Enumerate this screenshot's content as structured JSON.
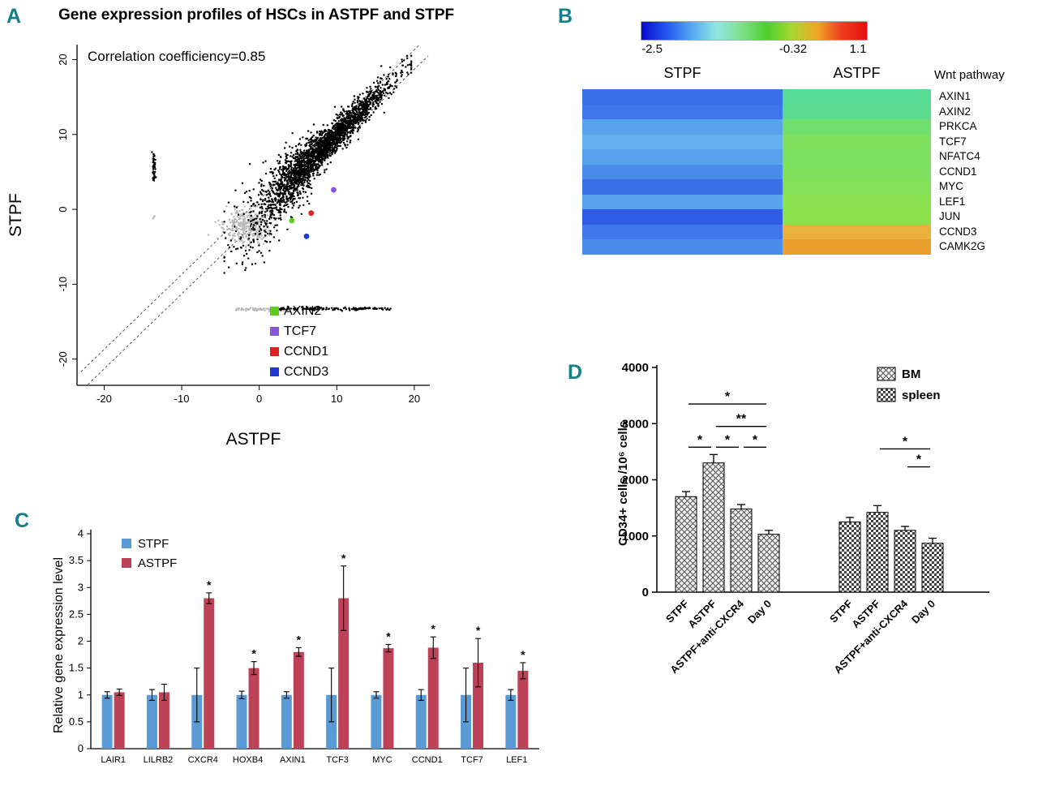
{
  "figure": {
    "accent_color": "#15808a",
    "background": "#ffffff"
  },
  "chart_data": [
    {
      "panel_label": "A",
      "type": "scatter",
      "title": "Gene expression profiles of HSCs in ASTPF and STPF",
      "annotation": "Correlation coefficiency=0.85",
      "xlabel": "ASTPF",
      "ylabel": "STPF",
      "xlim": [
        -20,
        20
      ],
      "ylim": [
        -20,
        20
      ],
      "xticks": [
        -20,
        -10,
        0,
        10,
        20
      ],
      "yticks": [
        -20,
        -10,
        0,
        10,
        20
      ],
      "correlation_coefficient": 0.85,
      "point_color": "#000000",
      "secondary_point_color": "#b9b9b9",
      "diagonal_guides_offset": 1.3,
      "cloud_summary": {
        "main_cloud": "dense black points along y=x from about (-4,-4) to (19,19), densest between 5 and 15",
        "gray_cluster": "light gray points clustered around (-2,-2) just below the origin",
        "gray_row": "gray points in a horizontal row near y=-13.3 for x in [-3,3]",
        "black_row": "black points in a horizontal row near y=-13.3 for x in [2,17]",
        "black_column": "black points in a vertical strip near x=-13.6 for y in [3.8,7.6]",
        "gray_outlier": "single gray point near (-13.6,-1)"
      },
      "legend": [
        {
          "label": "AXIN2",
          "color": "#5ecc1e",
          "x": 4.2,
          "y": -1.5
        },
        {
          "label": "TCF7",
          "color": "#8a55d6",
          "x": 9.6,
          "y": 2.6
        },
        {
          "label": "CCND1",
          "color": "#e0201f",
          "x": 6.7,
          "y": -0.5
        },
        {
          "label": "CCND3",
          "color": "#2038d0",
          "x": 6.1,
          "y": -3.6
        }
      ]
    },
    {
      "panel_label": "B",
      "type": "heatmap",
      "pathway_label": "Wnt pathway",
      "columns": [
        "STPF",
        "ASTPF"
      ],
      "colorbar": {
        "min_label": "-2.5",
        "mid_label": "-0.32",
        "max_label": "1.1",
        "gradient": [
          "#0a0ad2",
          "#2356ee",
          "#56a8f2",
          "#8ee8e2",
          "#7fe08a",
          "#4ecf2e",
          "#a8d832",
          "#f0a824",
          "#ee3c1c",
          "#e61010"
        ]
      },
      "rows": [
        {
          "gene": "AXIN1",
          "stpf": "#3a70e8",
          "astpf": "#57dc95"
        },
        {
          "gene": "AXIN2",
          "stpf": "#3f76e9",
          "astpf": "#5cdc8e"
        },
        {
          "gene": "PRKCA",
          "stpf": "#58a4ec",
          "astpf": "#70df6e"
        },
        {
          "gene": "TCF7",
          "stpf": "#62b0f0",
          "astpf": "#7ee05c"
        },
        {
          "gene": "NFATC4",
          "stpf": "#58a4ec",
          "astpf": "#7ce05e"
        },
        {
          "gene": "CCND1",
          "stpf": "#4a8cea",
          "astpf": "#7ee05c"
        },
        {
          "gene": "MYC",
          "stpf": "#3a70e8",
          "astpf": "#82e156"
        },
        {
          "gene": "LEF1",
          "stpf": "#58a4ec",
          "astpf": "#8ae24e"
        },
        {
          "gene": "JUN",
          "stpf": "#2e5ce4",
          "astpf": "#8ce24c"
        },
        {
          "gene": "CCND3",
          "stpf": "#3f76e9",
          "astpf": "#eab23c"
        },
        {
          "gene": "CAMK2G",
          "stpf": "#4a8cea",
          "astpf": "#ea9f2e"
        }
      ]
    },
    {
      "panel_label": "C",
      "type": "bar",
      "ylabel": "Relative gene expression level",
      "ylim": [
        0,
        4
      ],
      "yticks": [
        0,
        0.5,
        1,
        1.5,
        2,
        2.5,
        3,
        3.5,
        4
      ],
      "categories": [
        "LAIR1",
        "LILRB2",
        "CXCR4",
        "HOXB4",
        "AXIN1",
        "TCF3",
        "MYC",
        "CCND1",
        "TCF7",
        "LEF1"
      ],
      "series": [
        {
          "name": "STPF",
          "color": "#5b9bd5",
          "values": [
            1,
            1,
            1,
            1,
            1,
            1,
            1,
            1,
            1,
            1
          ],
          "errors": [
            0.06,
            0.1,
            0.5,
            0.07,
            0.06,
            0.5,
            0.06,
            0.1,
            0.5,
            0.1
          ]
        },
        {
          "name": "ASTPF",
          "color": "#bd4257",
          "values": [
            1.05,
            1.05,
            2.8,
            1.5,
            1.8,
            2.8,
            1.87,
            1.88,
            1.6,
            1.45
          ],
          "errors": [
            0.06,
            0.15,
            0.1,
            0.12,
            0.08,
            0.6,
            0.07,
            0.2,
            0.45,
            0.15
          ]
        }
      ],
      "significance": [
        "",
        "",
        "*",
        "*",
        "*",
        "*",
        "*",
        "*",
        "*",
        "*"
      ]
    },
    {
      "panel_label": "D",
      "type": "bar",
      "ylabel": "CD34+ cells /10⁶ cells",
      "ylim": [
        0,
        4000
      ],
      "yticks": [
        0,
        1000,
        2000,
        3000,
        4000
      ],
      "legend": [
        {
          "label": "BM",
          "pattern": "crosshatch"
        },
        {
          "label": "spleen",
          "pattern": "checker"
        }
      ],
      "bars": [
        {
          "group": "BM",
          "label": "STPF",
          "value": 1700,
          "error": 90
        },
        {
          "group": "BM",
          "label": "ASTPF",
          "value": 2300,
          "error": 150
        },
        {
          "group": "BM",
          "label": "ASTPF+anti-CXCR4",
          "value": 1480,
          "error": 80
        },
        {
          "group": "BM",
          "label": "Day 0",
          "value": 1030,
          "error": 70
        },
        {
          "group": "spleen",
          "label": "STPF",
          "value": 1250,
          "error": 80
        },
        {
          "group": "spleen",
          "label": "ASTPF",
          "value": 1420,
          "error": 120
        },
        {
          "group": "spleen",
          "label": "ASTPF+anti-CXCR4",
          "value": 1100,
          "error": 70
        },
        {
          "group": "spleen",
          "label": "Day 0",
          "value": 870,
          "error": 90
        }
      ],
      "significance": [
        {
          "a": 0,
          "b": 3,
          "y": 3350,
          "label": "*"
        },
        {
          "a": 1,
          "b": 3,
          "y": 2950,
          "label": "**"
        },
        {
          "a": 0,
          "b": 1,
          "y": 2580,
          "label": "*"
        },
        {
          "a": 1,
          "b": 2,
          "y": 2580,
          "label": "*"
        },
        {
          "a": 2,
          "b": 3,
          "y": 2580,
          "label": "*"
        },
        {
          "a": 5,
          "b": 7,
          "y": 2550,
          "label": "*"
        },
        {
          "a": 6,
          "b": 7,
          "y": 2230,
          "label": "*"
        }
      ]
    }
  ]
}
